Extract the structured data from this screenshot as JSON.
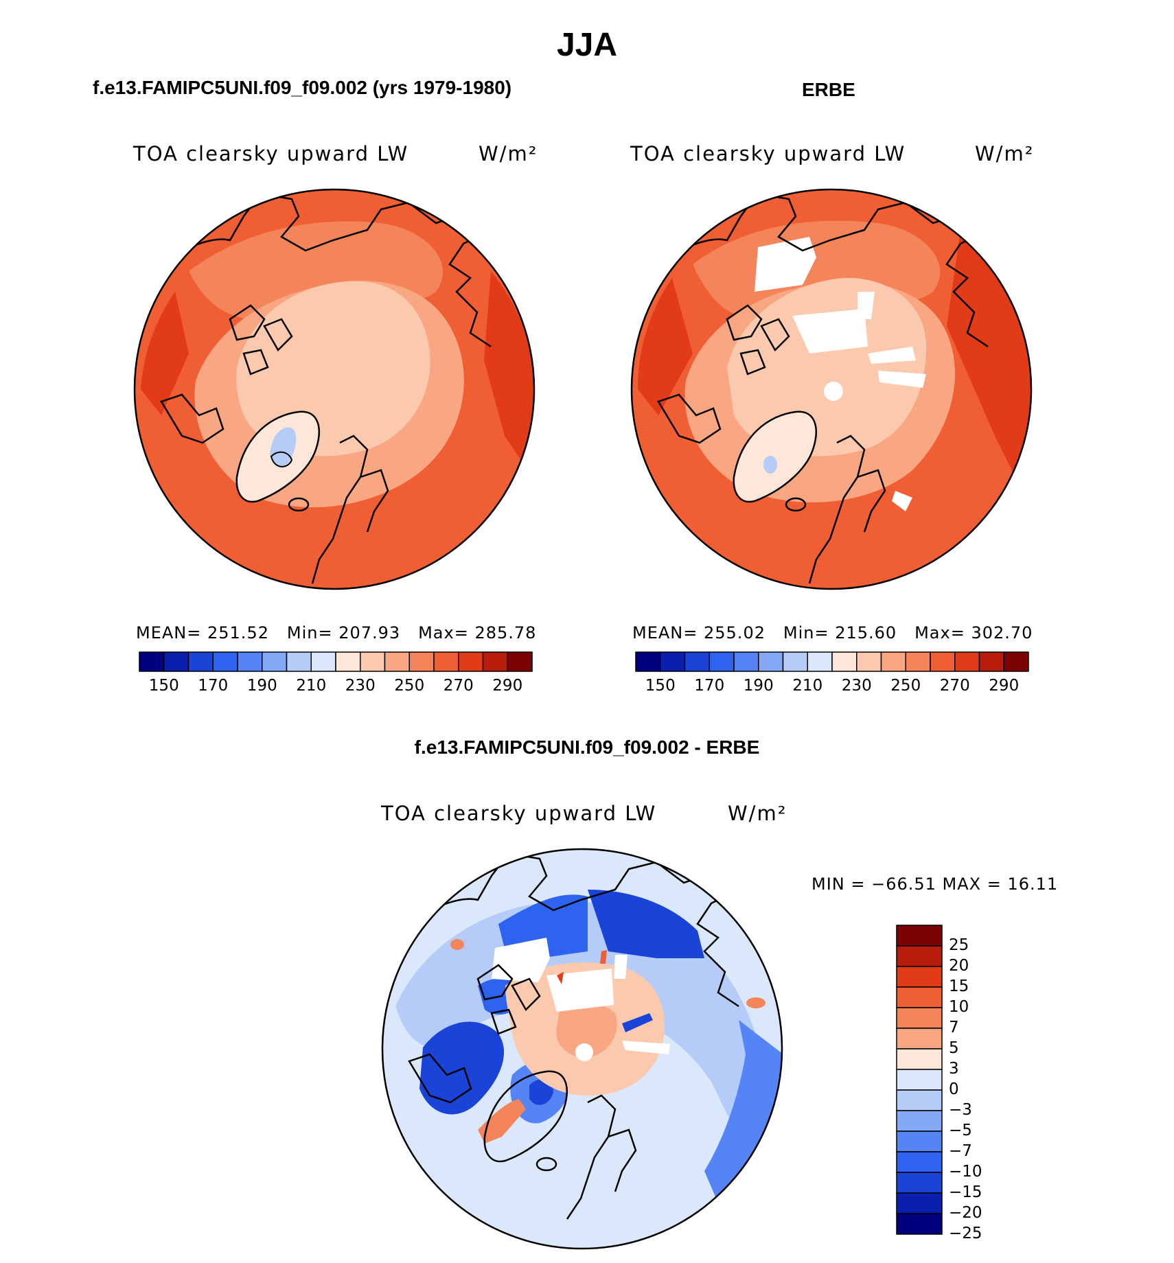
{
  "figure": {
    "title": "JJA"
  },
  "panels": [
    {
      "title": "f.e13.FAMIPC5UNI.f09_f09.002 (yrs 1979-1980)",
      "field": "TOA clearsky upward LW",
      "units": "W/m²",
      "stats": {
        "mean_label": "MEAN=",
        "mean": "251.52",
        "min_label": "Min=",
        "min": "207.93",
        "max_label": "Max=",
        "max": "285.78"
      }
    },
    {
      "title": "ERBE",
      "field": "TOA clearsky upward LW",
      "units": "W/m²",
      "stats": {
        "mean_label": "MEAN=",
        "mean": "255.02",
        "min_label": "Min=",
        "min": "215.60",
        "max_label": "Max=",
        "max": "302.70"
      }
    },
    {
      "title": "f.e13.FAMIPC5UNI.f09_f09.002 - ERBE",
      "field": "TOA clearsky upward LW",
      "units": "W/m²",
      "stats_text": "MIN = −66.51 MAX =   16.11"
    }
  ],
  "colorbars": {
    "absolute": {
      "colors": [
        "#00007f",
        "#0a1fb0",
        "#1a44d8",
        "#2e63f0",
        "#5585f4",
        "#86a9f6",
        "#b5cbf8",
        "#dbe8fb",
        "#fde7d8",
        "#fbc9ae",
        "#f8a782",
        "#f4845a",
        "#f05e34",
        "#e23b18",
        "#b81c0c",
        "#7d0303"
      ],
      "tick_labels": [
        "150",
        "170",
        "190",
        "210",
        "230",
        "250",
        "270",
        "290"
      ]
    },
    "difference": {
      "colors_top_to_bottom": [
        "#7d0303",
        "#b81c0c",
        "#e23b18",
        "#f05e34",
        "#f4845a",
        "#f8a782",
        "#fde7d8",
        "#dbe8fb",
        "#b5cbf8",
        "#86a9f6",
        "#5585f4",
        "#2e63f0",
        "#1a44d8",
        "#0a1fb0",
        "#00007f"
      ],
      "tick_labels": [
        "25",
        "20",
        "15",
        "10",
        "7",
        "5",
        "3",
        "0",
        "−3",
        "−5",
        "−7",
        "−10",
        "−15",
        "−20",
        "−25"
      ]
    }
  }
}
